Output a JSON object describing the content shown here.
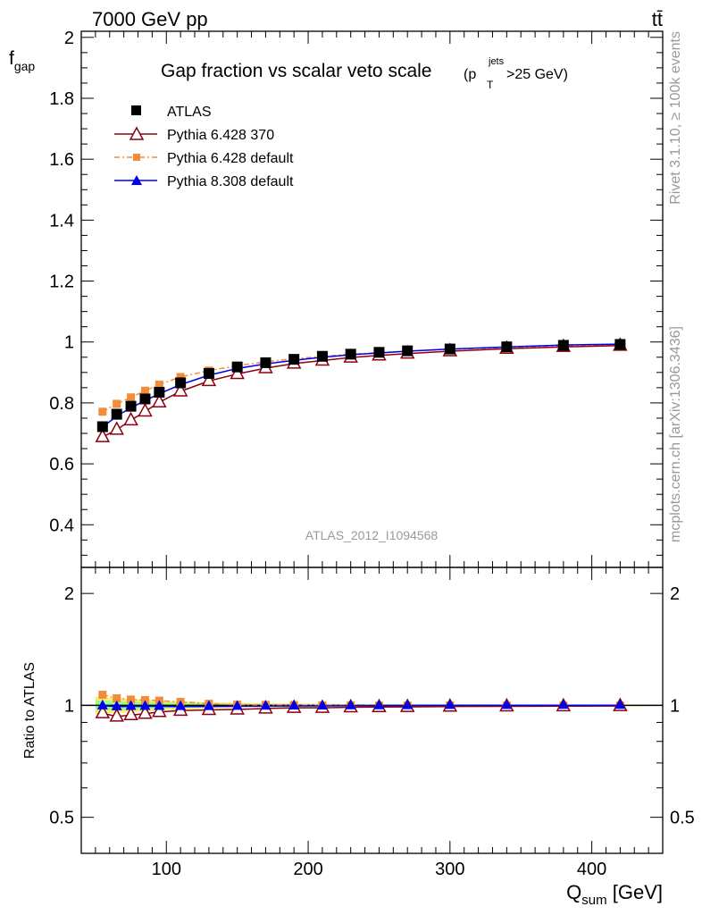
{
  "header": {
    "energy_label": "7000 GeV pp",
    "process_label": "tt̄"
  },
  "side_labels": {
    "rivet": "Rivet 3.1.10, ≥ 100k events",
    "mcplots": "mcplots.cern.ch [arXiv:1306.3436]"
  },
  "main_plot": {
    "title_main": "Gap fraction vs scalar veto scale",
    "title_cut": "(p",
    "title_cut_sup": "jets",
    "title_cut_sub": "T",
    "title_cut_tail": ">25 GeV)",
    "ylabel_main": "f",
    "ylabel_sub": "gap",
    "analysis_id": "ATLAS_2012_I1094568",
    "yticks": [
      "0.4",
      "0.6",
      "0.8",
      "1",
      "1.2",
      "1.4",
      "1.6",
      "1.8",
      "2"
    ]
  },
  "ratio_plot": {
    "ylabel": "Ratio to ATLAS",
    "yticks_left": [
      "0.5",
      "1",
      "2"
    ],
    "yticks_right": [
      "0.5",
      "1",
      "2"
    ]
  },
  "xaxis": {
    "ticks": [
      "100",
      "200",
      "300",
      "400"
    ],
    "label_main": "Q",
    "label_sub": "sum",
    "label_unit": " [GeV]"
  },
  "legend": [
    "ATLAS",
    "Pythia 6.428 370",
    "Pythia 6.428 default",
    "Pythia 8.308 default"
  ],
  "colors": {
    "atlas": "#000000",
    "p6_370": "#8b0011",
    "p6_default": "#f28c3a",
    "p8_default": "#0000ee",
    "band_green": "#99ff88",
    "band_yellow": "#ffee66"
  },
  "chart_data": {
    "type": "line",
    "title": "Gap fraction vs scalar veto scale(pT jets>25 GeV)",
    "xlabel": "Q_sum [GeV]",
    "ylabel": "f_gap",
    "xlim": [
      40,
      450
    ],
    "ylim": [
      0.26,
      2.02
    ],
    "ratio_ylim": [
      0.4,
      2.35
    ],
    "ratio_scale": "log",
    "x": [
      55,
      65,
      75,
      85,
      95,
      110,
      130,
      150,
      170,
      190,
      210,
      230,
      250,
      270,
      300,
      340,
      380,
      420
    ],
    "series": [
      {
        "name": "ATLAS",
        "marker": "square",
        "values": [
          0.722,
          0.763,
          0.789,
          0.813,
          0.835,
          0.866,
          0.897,
          0.918,
          0.932,
          0.943,
          0.953,
          0.96,
          0.966,
          0.971,
          0.977,
          0.984,
          0.989,
          0.992
        ]
      },
      {
        "name": "Pythia 6.428 370",
        "marker": "open-triangle",
        "values": [
          0.688,
          0.712,
          0.743,
          0.772,
          0.802,
          0.838,
          0.872,
          0.895,
          0.914,
          0.929,
          0.939,
          0.949,
          0.956,
          0.962,
          0.97,
          0.978,
          0.984,
          0.988
        ]
      },
      {
        "name": "Pythia 6.428 default",
        "marker": "small-square",
        "values": [
          0.771,
          0.797,
          0.818,
          0.84,
          0.86,
          0.885,
          0.906,
          0.922,
          0.935,
          0.945,
          0.953,
          0.96,
          0.965,
          0.97,
          0.976,
          0.982,
          0.987,
          0.99
        ]
      },
      {
        "name": "Pythia 8.308 default",
        "marker": "triangle",
        "values": [
          0.72,
          0.757,
          0.784,
          0.808,
          0.83,
          0.86,
          0.891,
          0.913,
          0.928,
          0.94,
          0.95,
          0.958,
          0.964,
          0.97,
          0.977,
          0.984,
          0.99,
          0.993
        ]
      }
    ],
    "ratio_band": {
      "x": [
        50,
        60,
        70,
        80,
        90,
        100,
        120,
        140,
        160,
        180,
        200,
        220,
        240,
        260,
        280,
        320,
        360,
        400,
        440
      ],
      "half_width": [
        0.035,
        0.03,
        0.027,
        0.024,
        0.021,
        0.018,
        0.014,
        0.011,
        0.009,
        0.008,
        0.007,
        0.006,
        0.005,
        0.005,
        0.004,
        0.004,
        0.003,
        0.003,
        0.003
      ]
    }
  }
}
